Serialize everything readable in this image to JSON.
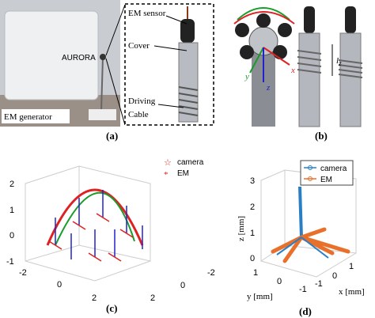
{
  "panel_a": {
    "generator_logo": "AURORA",
    "generator_label": "EM generator",
    "callouts": [
      "EM sensor",
      "Cover",
      "Driving",
      "Cable"
    ],
    "caption": "(a)"
  },
  "panel_b": {
    "axes": [
      "x",
      "y",
      "z"
    ],
    "length_label": "l",
    "length_subscript": "z",
    "caption": "(b)"
  },
  "panel_c": {
    "legend": [
      "camera",
      "EM"
    ],
    "z_ticks": [
      "2",
      "1",
      "0",
      "-1"
    ],
    "x_ticks_left": [
      "-2",
      "0",
      "2"
    ],
    "x_ticks_right": [
      "-2",
      "0",
      "2"
    ],
    "caption": "(c)"
  },
  "panel_d": {
    "legend": [
      "camera",
      "EM"
    ],
    "z_ticks": [
      "3",
      "2",
      "1",
      "0"
    ],
    "z_label": "z [mm]",
    "y_ticks": [
      "1",
      "0",
      "-1"
    ],
    "y_label": "y [mm]",
    "x_ticks": [
      "-1",
      "0",
      "1"
    ],
    "x_label": "x [mm]",
    "caption": "(d)"
  }
}
